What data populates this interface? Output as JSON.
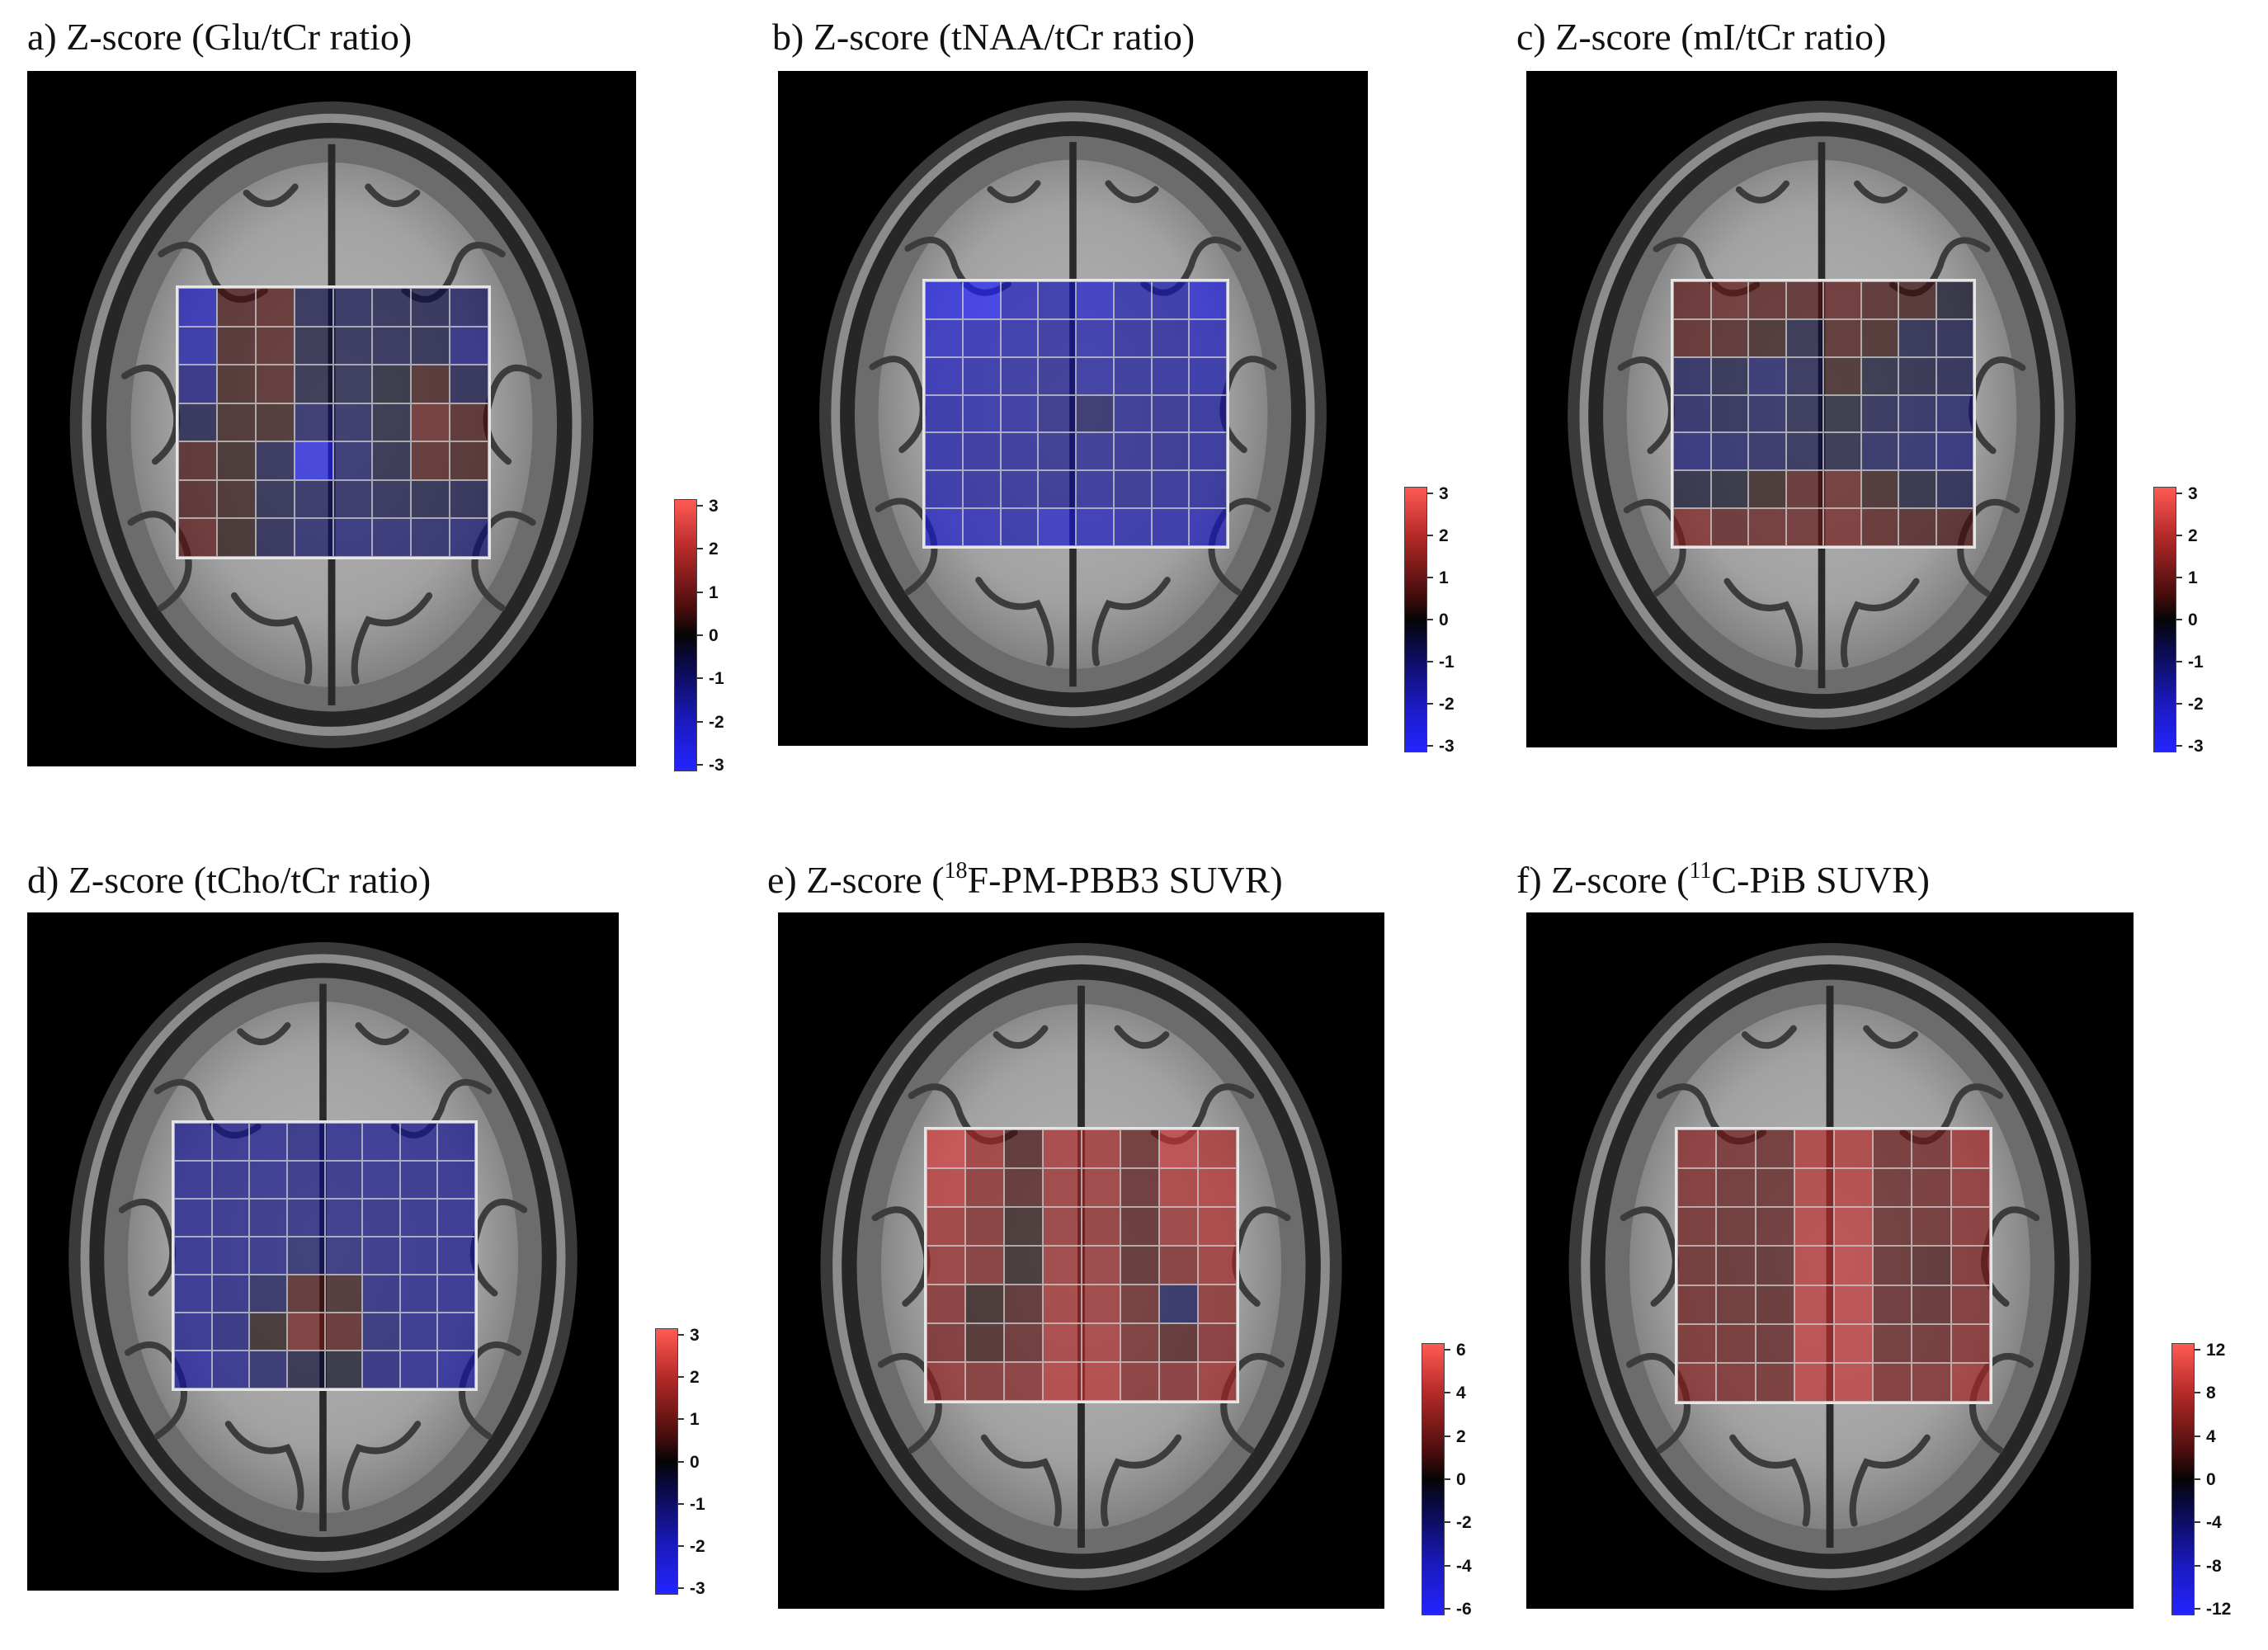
{
  "panels": [
    {
      "id": "a",
      "title_text": "a) Z-score (Glu/tCr ratio)",
      "sup": "",
      "title_after": "",
      "colorbar": {
        "ticks": [
          "3",
          "2",
          "1",
          "0",
          "-1",
          "-2",
          "-3"
        ],
        "max": 3
      },
      "grid_values": [
        [
          -2.2,
          0.6,
          0.8,
          -0.6,
          -0.7,
          -0.6,
          -0.6,
          -0.9
        ],
        [
          -2.0,
          0.5,
          0.7,
          -0.4,
          -0.6,
          -0.6,
          -0.5,
          -1.4
        ],
        [
          -1.4,
          0.4,
          0.6,
          -0.4,
          -0.5,
          -0.2,
          0.5,
          -0.6
        ],
        [
          -0.6,
          0.3,
          0.3,
          -0.9,
          -0.8,
          -0.3,
          1.0,
          0.6
        ],
        [
          0.6,
          0.2,
          -0.6,
          -2.8,
          -1.0,
          -0.4,
          0.7,
          0.5
        ],
        [
          0.6,
          0.3,
          -0.5,
          -0.8,
          -0.8,
          -0.6,
          -0.5,
          -0.6
        ],
        [
          0.9,
          0.2,
          -0.6,
          -1.0,
          -1.2,
          -1.1,
          -1.0,
          -1.2
        ]
      ]
    },
    {
      "id": "b",
      "title_text": "b) Z-score (tNAA/tCr ratio)",
      "sup": "",
      "title_after": "",
      "colorbar": {
        "ticks": [
          "3",
          "2",
          "1",
          "0",
          "-1",
          "-2",
          "-3"
        ],
        "max": 3
      },
      "grid_values": [
        [
          -2.8,
          -3.0,
          -2.2,
          -2.0,
          -2.4,
          -2.0,
          -2.0,
          -2.6
        ],
        [
          -2.4,
          -2.2,
          -2.0,
          -1.8,
          -2.0,
          -1.8,
          -1.8,
          -2.2
        ],
        [
          -2.2,
          -2.0,
          -1.8,
          -1.6,
          -1.8,
          -1.7,
          -1.8,
          -2.0
        ],
        [
          -2.0,
          -2.0,
          -1.8,
          -1.4,
          -0.9,
          -1.6,
          -1.6,
          -1.8
        ],
        [
          -2.0,
          -1.8,
          -1.7,
          -1.5,
          -1.6,
          -1.6,
          -1.6,
          -1.8
        ],
        [
          -2.0,
          -1.8,
          -1.7,
          -1.6,
          -1.7,
          -1.6,
          -1.7,
          -1.8
        ],
        [
          -2.4,
          -2.2,
          -2.0,
          -2.4,
          -2.2,
          -2.0,
          -2.0,
          -2.2
        ]
      ]
    },
    {
      "id": "c",
      "title_text": "c) Z-score (mI/tCr ratio)",
      "sup": "",
      "title_after": "",
      "colorbar": {
        "ticks": [
          "3",
          "2",
          "1",
          "0",
          "-1",
          "-2",
          "-3"
        ],
        "max": 3
      },
      "grid_values": [
        [
          0.9,
          1.0,
          0.8,
          0.7,
          0.9,
          0.6,
          0.5,
          -0.2
        ],
        [
          0.8,
          0.6,
          0.3,
          -0.4,
          0.6,
          0.4,
          -0.5,
          -0.6
        ],
        [
          -0.8,
          -0.5,
          -1.0,
          -0.6,
          0.3,
          -0.3,
          -0.4,
          -0.6
        ],
        [
          -0.9,
          -0.6,
          -0.8,
          -0.5,
          -0.2,
          -0.6,
          -0.8,
          -1.0
        ],
        [
          -1.2,
          -1.0,
          -0.8,
          -0.6,
          -0.4,
          -0.8,
          -1.0,
          -1.2
        ],
        [
          -0.3,
          -0.2,
          0.2,
          0.8,
          1.0,
          0.3,
          -0.3,
          -0.6
        ],
        [
          1.4,
          0.9,
          1.0,
          1.0,
          1.2,
          0.8,
          0.6,
          0.6
        ]
      ]
    },
    {
      "id": "d",
      "title_text": "d) Z-score (tCho/tCr ratio)",
      "sup": "",
      "title_after": "",
      "colorbar": {
        "ticks": [
          "3",
          "2",
          "1",
          "0",
          "-1",
          "-2",
          "-3"
        ],
        "max": 3
      },
      "grid_values": [
        [
          -1.6,
          -1.6,
          -1.6,
          -1.4,
          -1.5,
          -1.6,
          -1.6,
          -1.6
        ],
        [
          -1.6,
          -1.5,
          -1.5,
          -1.4,
          -1.4,
          -1.5,
          -1.5,
          -1.6
        ],
        [
          -1.6,
          -1.5,
          -1.4,
          -1.3,
          -1.4,
          -1.4,
          -1.5,
          -1.6
        ],
        [
          -1.6,
          -1.5,
          -1.4,
          -1.0,
          -1.2,
          -1.4,
          -1.5,
          -1.6
        ],
        [
          -1.6,
          -1.4,
          -0.8,
          0.6,
          0.3,
          -1.3,
          -1.5,
          -1.6
        ],
        [
          -1.6,
          -1.3,
          0.1,
          1.2,
          0.8,
          -1.2,
          -1.5,
          -1.6
        ],
        [
          -1.8,
          -1.5,
          -1.0,
          -0.4,
          -0.2,
          -1.3,
          -1.6,
          -1.8
        ]
      ]
    },
    {
      "id": "e",
      "title_text": "e) Z-score (",
      "sup": "18",
      "title_after": "F-PM-PBB3 SUVR)",
      "colorbar": {
        "ticks": [
          "6",
          "4",
          "2",
          "0",
          "-2",
          "-4",
          "-6"
        ],
        "max": 6
      },
      "grid_values": [
        [
          5.2,
          3.8,
          1.2,
          4.0,
          3.8,
          2.0,
          4.8,
          4.2
        ],
        [
          4.6,
          3.2,
          1.4,
          3.6,
          3.6,
          1.8,
          4.2,
          4.4
        ],
        [
          3.8,
          2.8,
          0.4,
          3.4,
          3.2,
          1.6,
          3.6,
          4.2
        ],
        [
          3.6,
          2.8,
          0.2,
          3.6,
          3.4,
          1.4,
          2.8,
          3.8
        ],
        [
          3.0,
          0.4,
          1.2,
          3.8,
          3.6,
          2.0,
          -1.6,
          3.2
        ],
        [
          2.6,
          1.0,
          1.8,
          4.0,
          4.0,
          2.4,
          1.4,
          3.0
        ],
        [
          3.4,
          2.8,
          3.0,
          4.4,
          4.4,
          3.0,
          3.0,
          3.8
        ]
      ]
    },
    {
      "id": "f",
      "title_text": "f) Z-score (",
      "sup": "11",
      "title_after": "C-PiB SUVR)",
      "colorbar": {
        "ticks": [
          "12",
          "8",
          "4",
          "0",
          "-4",
          "-8",
          "-12"
        ],
        "max": 12
      },
      "grid_values": [
        [
          6.2,
          4.8,
          4.0,
          8.4,
          8.4,
          4.4,
          4.8,
          7.6
        ],
        [
          5.4,
          4.2,
          3.8,
          8.6,
          8.8,
          4.0,
          4.6,
          6.6
        ],
        [
          4.6,
          3.8,
          3.6,
          8.8,
          9.0,
          3.8,
          4.2,
          5.8
        ],
        [
          4.2,
          3.4,
          3.0,
          8.8,
          9.2,
          3.4,
          2.6,
          5.2
        ],
        [
          4.4,
          3.8,
          3.2,
          9.0,
          9.2,
          3.6,
          3.4,
          5.4
        ],
        [
          5.0,
          4.4,
          3.6,
          9.2,
          9.4,
          4.0,
          4.2,
          5.8
        ],
        [
          6.0,
          5.2,
          4.6,
          9.2,
          9.4,
          5.2,
          5.6,
          7.8
        ]
      ]
    }
  ]
}
